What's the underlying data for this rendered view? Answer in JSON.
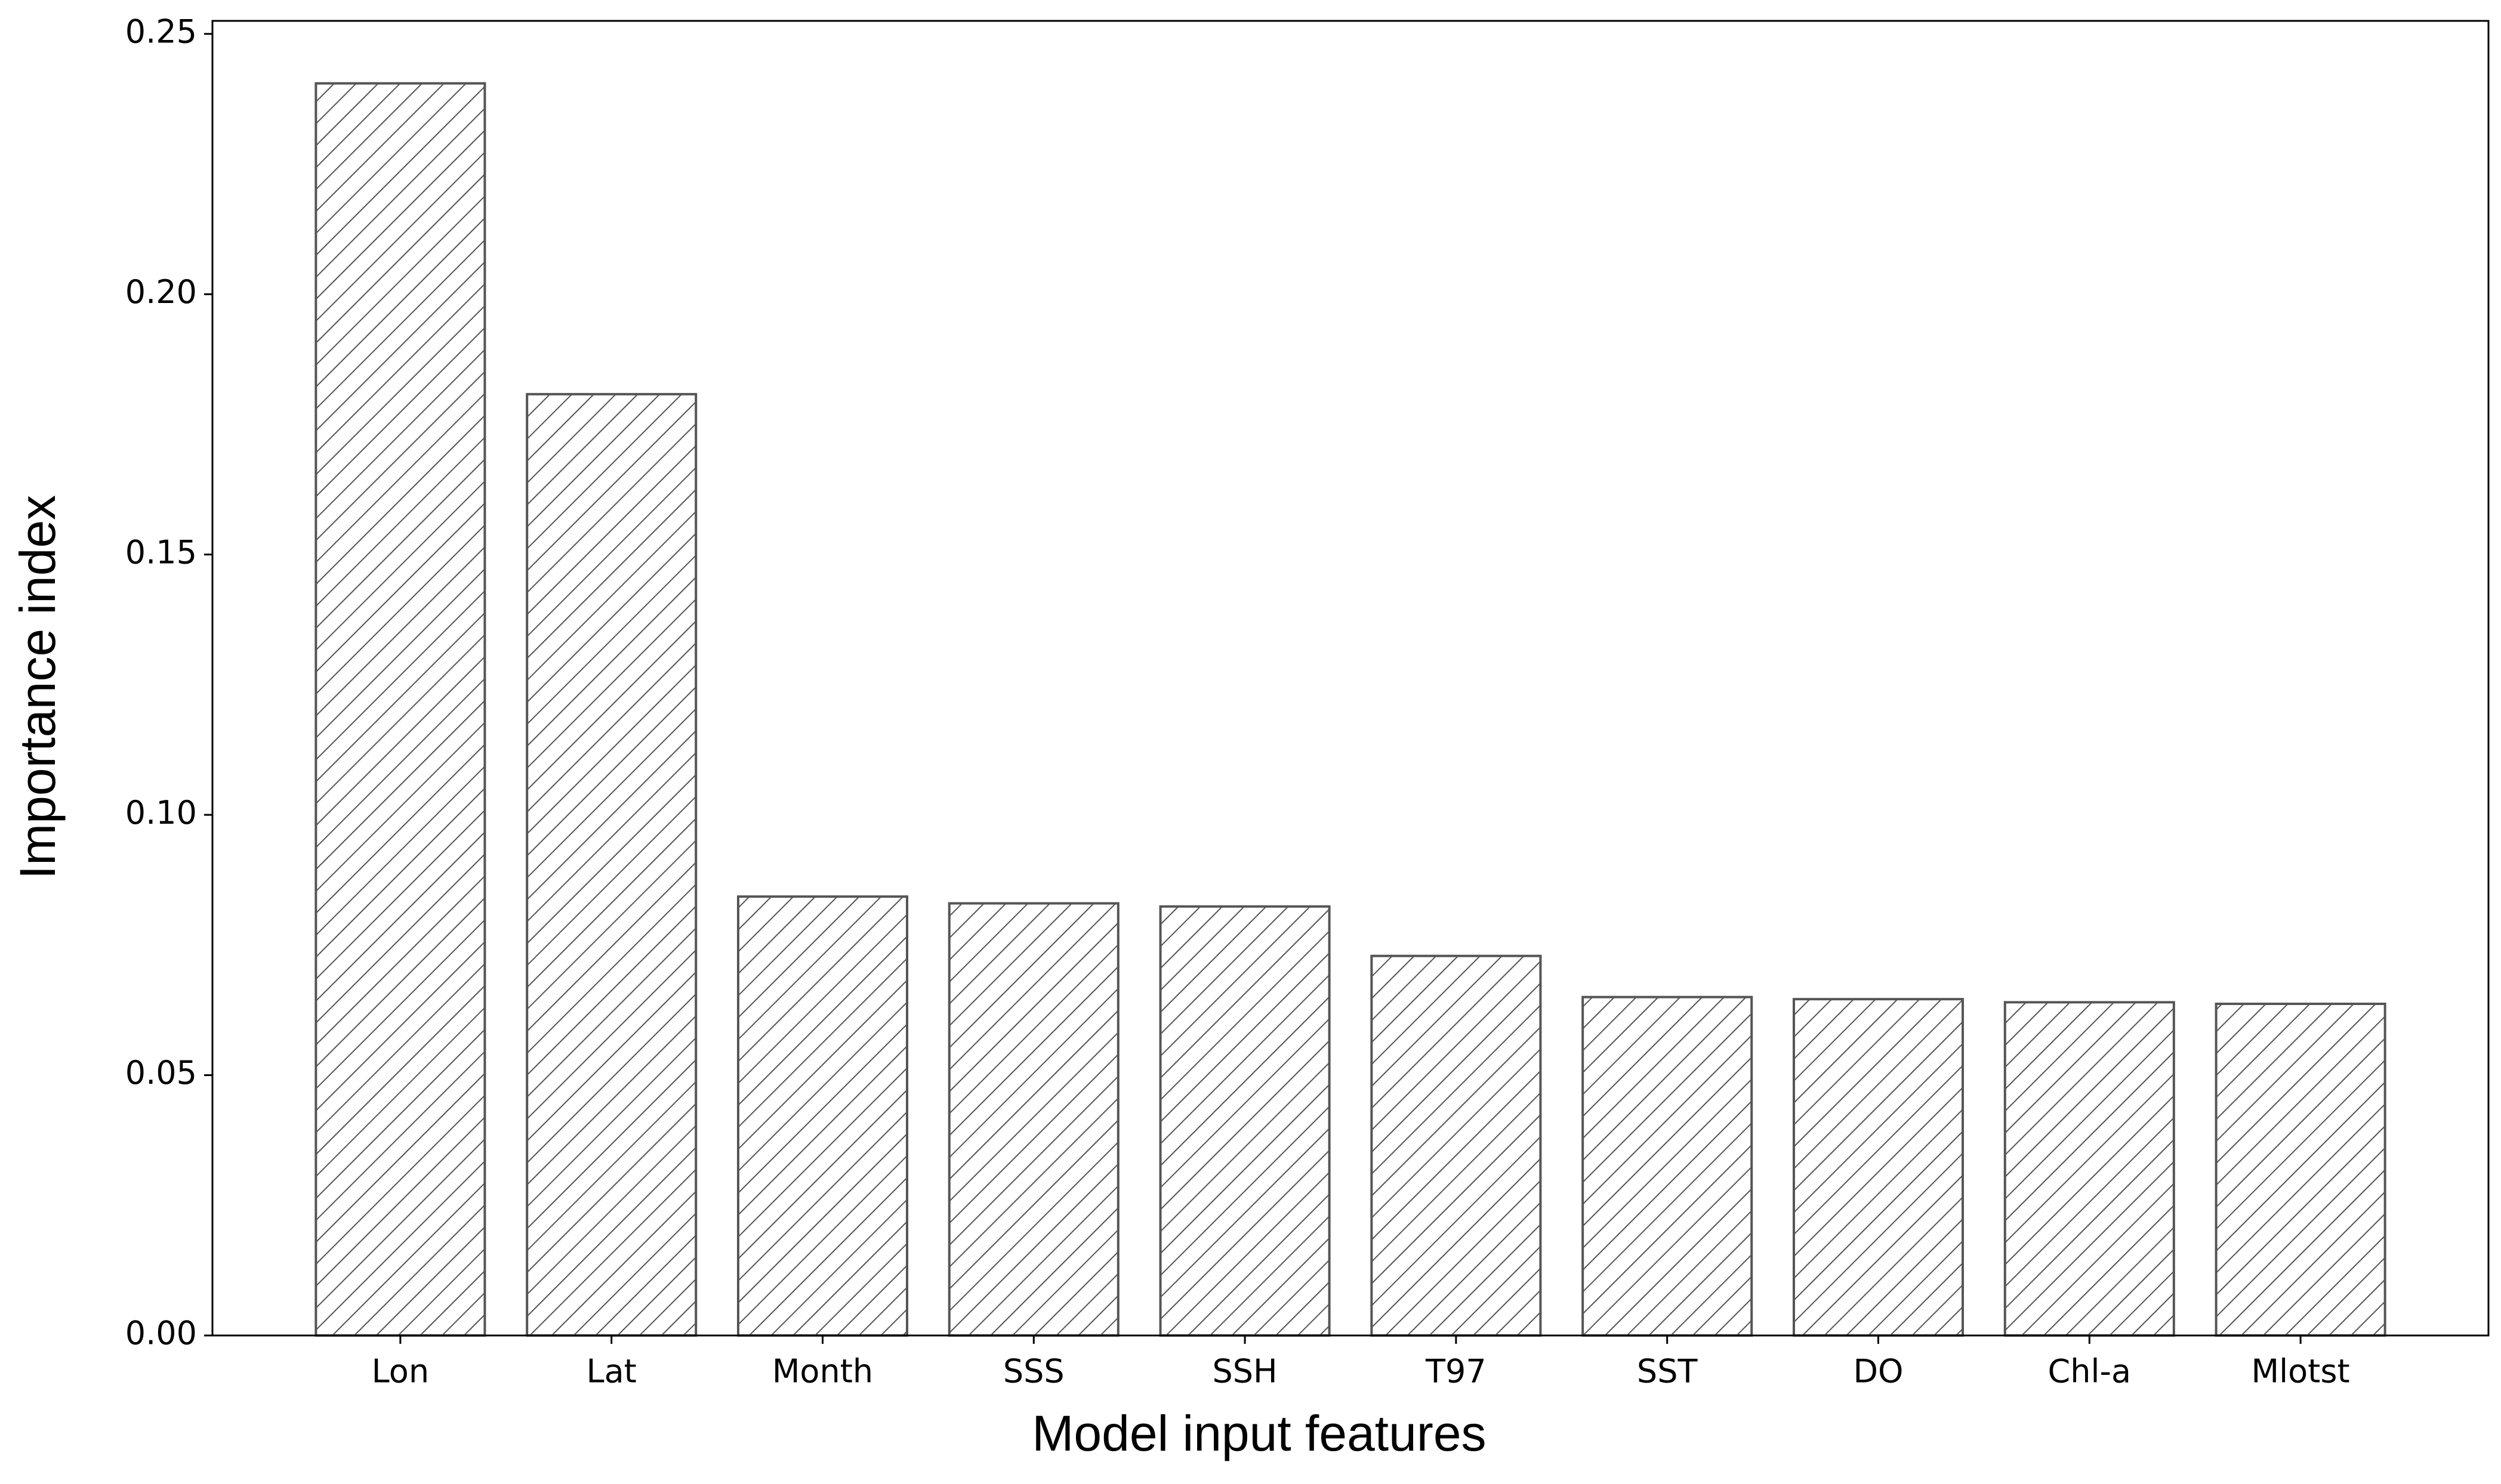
{
  "chart_data": {
    "type": "bar",
    "x_label": "Model input features",
    "y_label": "Importance index",
    "categories": [
      "Lon",
      "Lat",
      "Month",
      "SSS",
      "SSH",
      "T97",
      "SST",
      "DO",
      "Chl-a",
      "Mlotst"
    ],
    "values": [
      0.2405,
      0.1808,
      0.0843,
      0.083,
      0.0824,
      0.0729,
      0.065,
      0.0646,
      0.064,
      0.0637
    ],
    "color": "#555555",
    "ylim": [
      0,
      0.2525
    ],
    "yticks": [
      {
        "value": 0,
        "label": "0.00"
      },
      0.05,
      {
        "value": 0.1,
        "label": "0.10"
      },
      0.15,
      {
        "value": 0.2,
        "label": "0.20"
      },
      0.25
    ],
    "grid": false
  }
}
